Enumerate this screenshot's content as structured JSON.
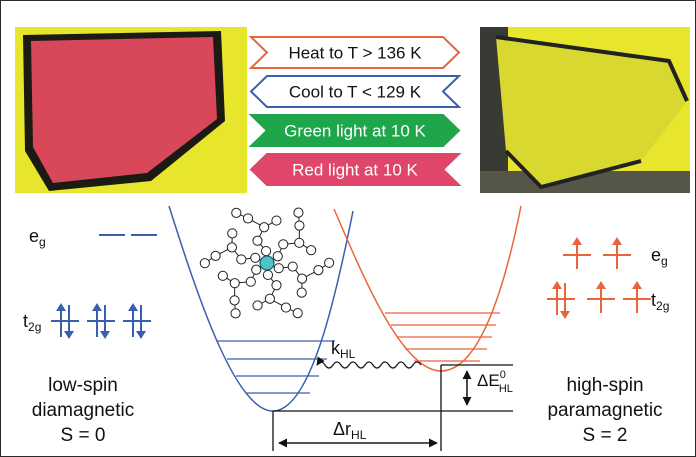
{
  "arrows": [
    {
      "label": "Heat to T > 136 K",
      "style": "outline",
      "color": "#e8663a",
      "direction": "right"
    },
    {
      "label": "Cool to T < 129 K",
      "style": "outline",
      "color": "#3a5fae",
      "direction": "left"
    },
    {
      "label": "Green light at 10 K",
      "style": "filled",
      "color": "#1fa64a",
      "direction": "right"
    },
    {
      "label": "Red light at 10 K",
      "style": "filled",
      "color": "#e0466a",
      "direction": "left"
    }
  ],
  "photos": {
    "left_crystal_color": "#d9475a",
    "right_crystal_color": "#c8cc2a",
    "background_color": "#e8e82a"
  },
  "low_spin": {
    "eg_base": "e",
    "eg_sub": "g",
    "t2g_base": "t",
    "t2g_sub": "2g",
    "line1": "low-spin",
    "line2": "diamagnetic",
    "line3": "S = 0",
    "color": "#3a5fae"
  },
  "high_spin": {
    "eg_base": "e",
    "eg_sub": "g",
    "t2g_base": "t",
    "t2g_sub": "2g",
    "line1": "high-spin",
    "line2": "paramagnetic",
    "line3": "S = 2",
    "color": "#e8663a"
  },
  "labels": {
    "k_base": "k",
    "k_sub": "HL",
    "dE_base": "ΔE",
    "dE_sup": "0",
    "dE_sub": "HL",
    "dr_base": "Δr",
    "dr_sub": "HL"
  }
}
